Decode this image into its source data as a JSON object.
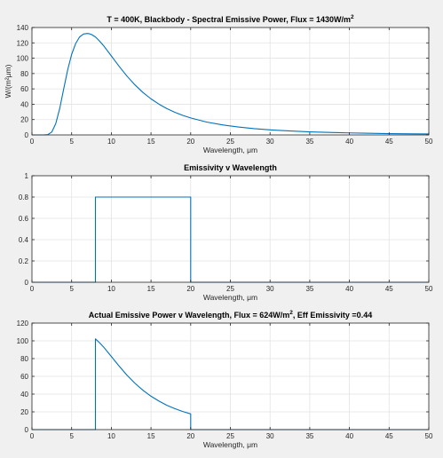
{
  "chart_data": [
    {
      "type": "line",
      "title": "T = 400K, Blackbody - Spectral Emissive Power, Flux = 1430W/m",
      "title_sup": "2",
      "xlabel": "Wavelength, μm",
      "ylabel": "W/(m²μm)",
      "xlim": [
        0,
        50
      ],
      "ylim": [
        0,
        140
      ],
      "xticks": [
        0,
        5,
        10,
        15,
        20,
        25,
        30,
        35,
        40,
        45,
        50
      ],
      "yticks": [
        0,
        20,
        40,
        60,
        80,
        100,
        120,
        140
      ],
      "grid": true,
      "series": [
        {
          "color": "#0072bd",
          "x": [
            0,
            1.5,
            2,
            2.5,
            3,
            3.5,
            4,
            4.5,
            5,
            5.5,
            6,
            6.5,
            7,
            7.25,
            7.5,
            8,
            8.5,
            9,
            10,
            11,
            12,
            13,
            14,
            15,
            16,
            17,
            18,
            19,
            20,
            22,
            24,
            26,
            28,
            30,
            32,
            35,
            38,
            40,
            42,
            45,
            48,
            50
          ],
          "y": [
            0,
            0.01,
            0.4,
            3.8,
            14.8,
            34.5,
            60,
            84.7,
            105,
            119,
            127.7,
            131.5,
            132.3,
            131.8,
            130.9,
            127.7,
            122.5,
            116.6,
            103,
            89.2,
            76.3,
            65,
            55.2,
            47,
            40.1,
            34.3,
            29.5,
            25.5,
            22.1,
            16.8,
            13.1,
            10.3,
            8.2,
            6.6,
            5.4,
            4.0,
            3.1,
            2.6,
            2.2,
            1.7,
            1.4,
            1.2
          ]
        }
      ]
    },
    {
      "type": "line",
      "title": "Emissivity v Wavelength",
      "xlabel": "Wavelength, μm",
      "ylabel": "",
      "xlim": [
        0,
        50
      ],
      "ylim": [
        0,
        1
      ],
      "xticks": [
        0,
        5,
        10,
        15,
        20,
        25,
        30,
        35,
        40,
        45,
        50
      ],
      "yticks": [
        0,
        0.2,
        0.4,
        0.6,
        0.8,
        1
      ],
      "grid": true,
      "series": [
        {
          "color": "#0072bd",
          "x": [
            0,
            8,
            8,
            20,
            20,
            50
          ],
          "y": [
            0,
            0,
            0.8,
            0.8,
            0,
            0
          ]
        }
      ]
    },
    {
      "type": "line",
      "title": "Actual Emissive Power v Wavelength, Flux = 624W/m",
      "title_sup": "2",
      "title_suffix": ", Eff Emissivity =0.44",
      "xlabel": "Wavelength, μm",
      "ylabel": "",
      "xlim": [
        0,
        50
      ],
      "ylim": [
        0,
        120
      ],
      "xticks": [
        0,
        5,
        10,
        15,
        20,
        25,
        30,
        35,
        40,
        45,
        50
      ],
      "yticks": [
        0,
        20,
        40,
        60,
        80,
        100,
        120
      ],
      "grid": true,
      "series": [
        {
          "color": "#0072bd",
          "x": [
            0,
            8,
            8,
            8.5,
            9,
            10,
            11,
            12,
            13,
            14,
            15,
            16,
            17,
            18,
            19,
            20,
            20,
            50
          ],
          "y": [
            0,
            0,
            102.2,
            98,
            93.3,
            82.4,
            71.4,
            61,
            52,
            44.2,
            37.6,
            32.1,
            27.4,
            23.6,
            20.4,
            17.7,
            0,
            0
          ]
        }
      ]
    }
  ]
}
